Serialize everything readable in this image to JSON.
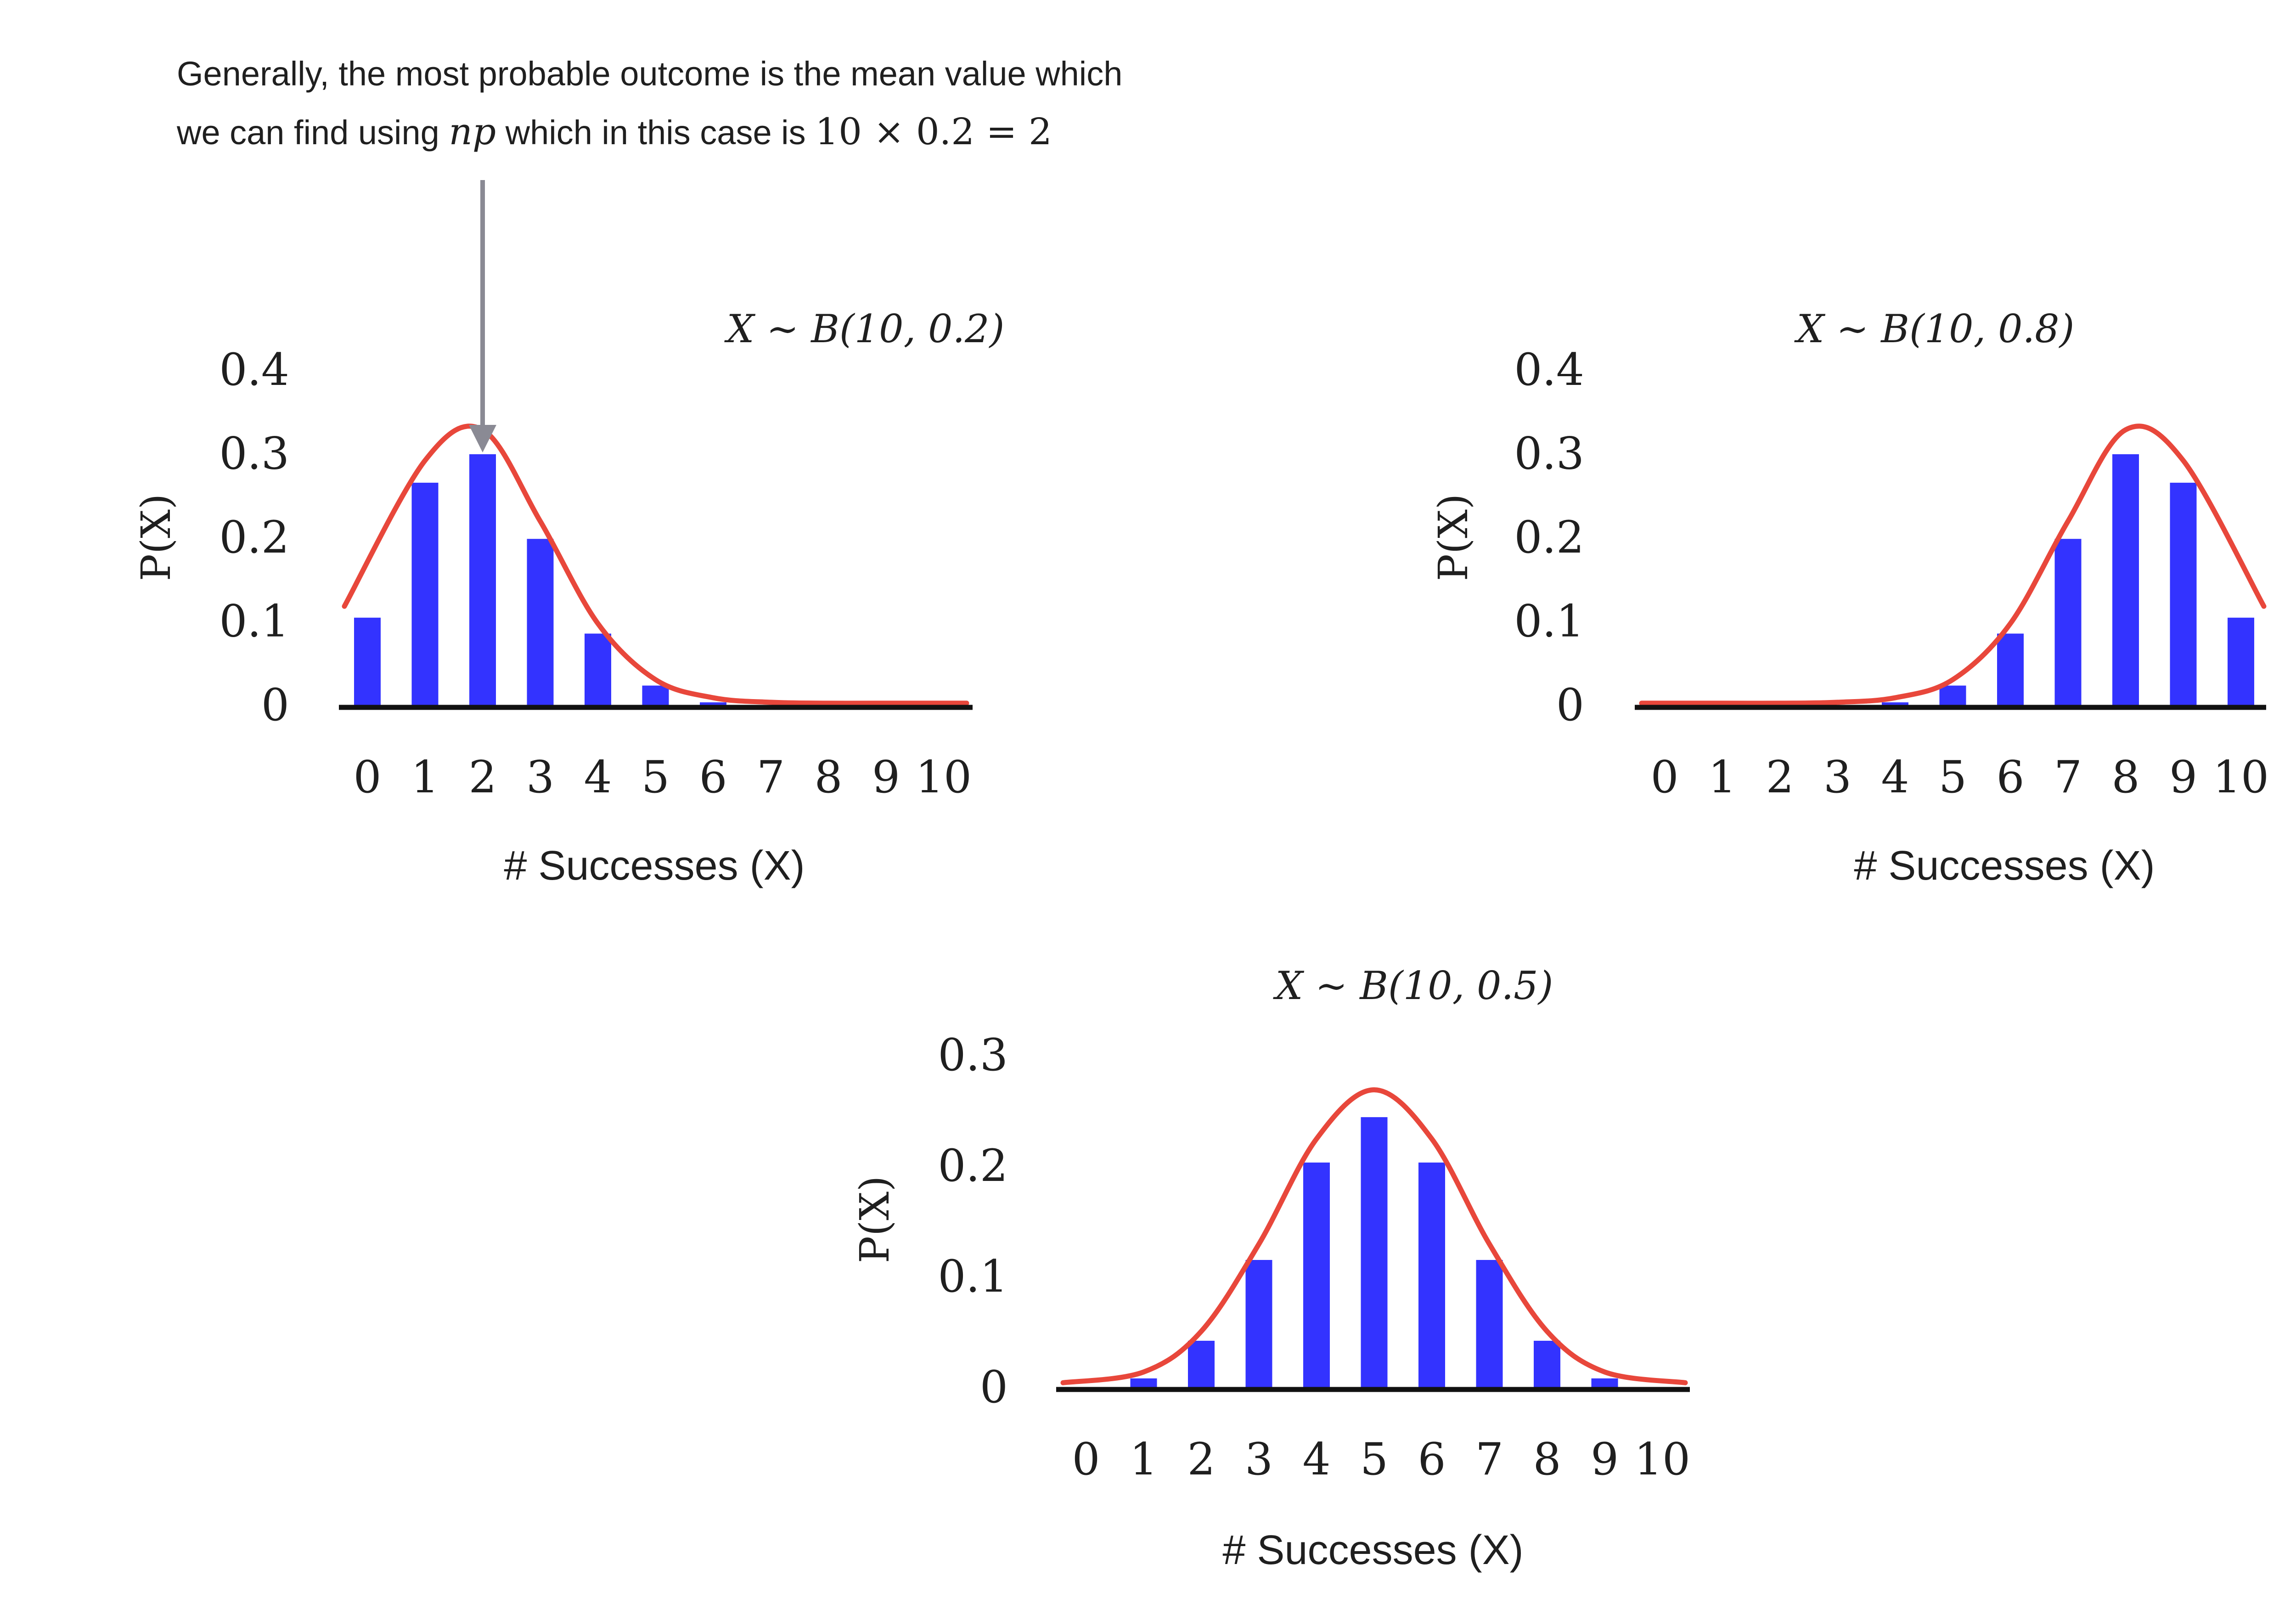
{
  "annotation": {
    "line1": "Generally, the most probable outcome is the mean value which",
    "line2_prefix": "we can find using ",
    "line2_math_np": "np",
    "line2_middle": " which in this case is ",
    "line2_math_expr": "10 × 0.2 = 2"
  },
  "colors": {
    "bar": "#3333ff",
    "curve": "#e8473b",
    "axis": "#111111",
    "arrow": "#8a8a94",
    "text": "#1f1f1f"
  },
  "chart_data": [
    {
      "type": "bar",
      "title": "X ∼ B(10, 0.2)",
      "xlabel": "# Successes (X)",
      "ylabel": "P(X)",
      "categories": [
        "0",
        "1",
        "2",
        "3",
        "4",
        "5",
        "6",
        "7",
        "8",
        "9",
        "10"
      ],
      "values": [
        0.107,
        0.268,
        0.302,
        0.201,
        0.088,
        0.026,
        0.006,
        0.001,
        0.0,
        0.0,
        0.0
      ],
      "yticks": [
        "0",
        "0.1",
        "0.2",
        "0.3",
        "0.4"
      ],
      "ylim": [
        0,
        0.4
      ],
      "overlay_curve": "smooth fitted curve",
      "grid": false
    },
    {
      "type": "bar",
      "title": "X ∼ B(10, 0.8)",
      "xlabel": "# Successes (X)",
      "ylabel": "P(X)",
      "categories": [
        "0",
        "1",
        "2",
        "3",
        "4",
        "5",
        "6",
        "7",
        "8",
        "9",
        "10"
      ],
      "values": [
        0.0,
        0.0,
        0.0,
        0.001,
        0.006,
        0.026,
        0.088,
        0.201,
        0.302,
        0.268,
        0.107
      ],
      "yticks": [
        "0",
        "0.1",
        "0.2",
        "0.3",
        "0.4"
      ],
      "ylim": [
        0,
        0.4
      ],
      "overlay_curve": "smooth fitted curve",
      "grid": false
    },
    {
      "type": "bar",
      "title": "X ∼ B(10, 0.5)",
      "xlabel": "# Successes (X)",
      "ylabel": "P(X)",
      "categories": [
        "0",
        "1",
        "2",
        "3",
        "4",
        "5",
        "6",
        "7",
        "8",
        "9",
        "10"
      ],
      "values": [
        0.001,
        0.01,
        0.044,
        0.117,
        0.205,
        0.246,
        0.205,
        0.117,
        0.044,
        0.01,
        0.001
      ],
      "yticks": [
        "0",
        "0.1",
        "0.2",
        "0.3"
      ],
      "ylim": [
        0,
        0.3
      ],
      "overlay_curve": "smooth fitted curve",
      "grid": false
    }
  ]
}
